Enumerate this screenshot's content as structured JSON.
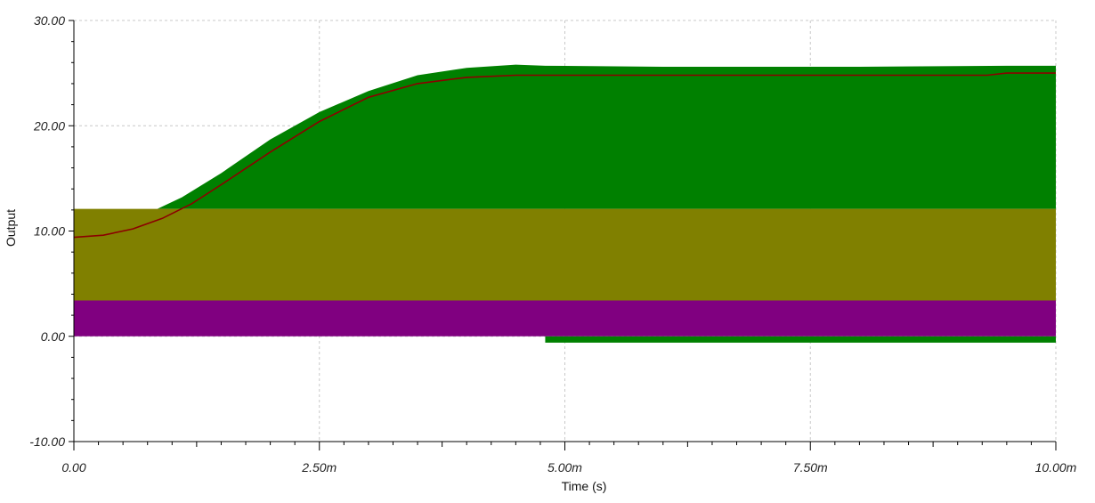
{
  "chart_data": {
    "type": "area",
    "title": "",
    "xlabel": "Time (s)",
    "ylabel": "Output",
    "xlim": [
      0,
      0.01
    ],
    "ylim": [
      -10,
      30
    ],
    "x_tick_values": [
      0,
      0.0025,
      0.005,
      0.0075,
      0.01
    ],
    "x_tick_labels": [
      "0.00",
      "2.50m",
      "5.00m",
      "7.50m",
      "10.00m"
    ],
    "y_tick_values": [
      -10,
      0,
      10,
      20,
      30
    ],
    "y_tick_labels": [
      "-10.00",
      "0.00",
      "10.00",
      "20.00",
      "30.00"
    ],
    "grid": true,
    "bands": [
      {
        "color": "#008000",
        "x": [
          0.00085,
          0.0011,
          0.0015,
          0.002,
          0.0025,
          0.003,
          0.0035,
          0.004,
          0.0045,
          0.0048,
          0.006,
          0.008,
          0.0095,
          0.01
        ],
        "y_top": [
          12.1,
          13.2,
          15.5,
          18.7,
          21.3,
          23.3,
          24.8,
          25.5,
          25.8,
          25.7,
          25.6,
          25.6,
          25.7,
          25.7
        ],
        "y_bottom": 12.1
      },
      {
        "color": "#008000",
        "x": [
          0.0048,
          0.01
        ],
        "y_top": [
          0,
          0
        ],
        "y_bottom": -0.6
      },
      {
        "color": "#808000",
        "x": [
          0,
          0.01
        ],
        "y_top": [
          12.1,
          12.1
        ],
        "y_bottom": 3.4
      },
      {
        "color": "#800080",
        "x": [
          0,
          0.01
        ],
        "y_top": [
          3.4,
          3.4
        ],
        "y_bottom": 0
      }
    ],
    "series": [
      {
        "color": "#8b0000",
        "x": [
          0,
          0.0003,
          0.0006,
          0.0009,
          0.0012,
          0.0015,
          0.002,
          0.0025,
          0.003,
          0.0035,
          0.004,
          0.0045,
          0.0048,
          0.006,
          0.008,
          0.0093,
          0.0095,
          0.01
        ],
        "y": [
          9.4,
          9.6,
          10.2,
          11.2,
          12.6,
          14.4,
          17.5,
          20.4,
          22.7,
          24.0,
          24.6,
          24.8,
          24.8,
          24.8,
          24.8,
          24.8,
          25.0,
          25.0
        ]
      }
    ]
  }
}
